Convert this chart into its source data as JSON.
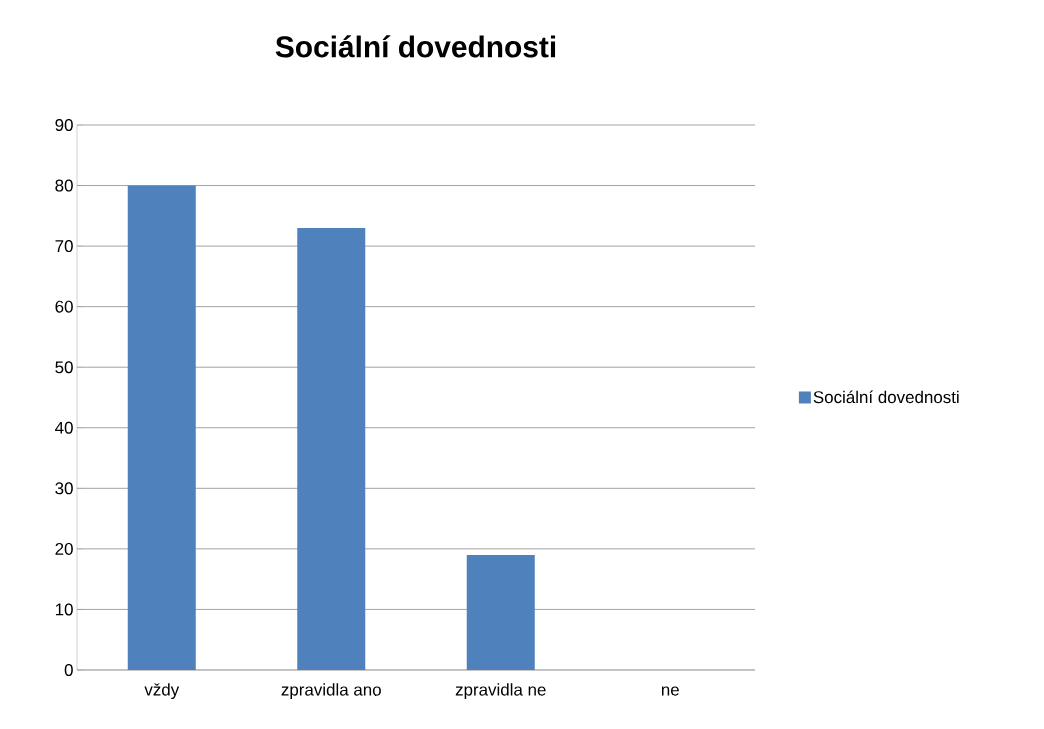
{
  "chart_data": {
    "type": "bar",
    "title": "Sociální dovednosti",
    "categories": [
      "vždy",
      "zpravidla ano",
      "zpravidla ne",
      "ne"
    ],
    "series": [
      {
        "name": "Sociální dovednosti",
        "color": "#4f81bd",
        "values": [
          80,
          73,
          19,
          0
        ]
      }
    ],
    "ylim": [
      0,
      90
    ],
    "yticks": [
      0,
      10,
      20,
      30,
      40,
      50,
      60,
      70,
      80,
      90
    ],
    "grid": "y",
    "legend": "right"
  }
}
